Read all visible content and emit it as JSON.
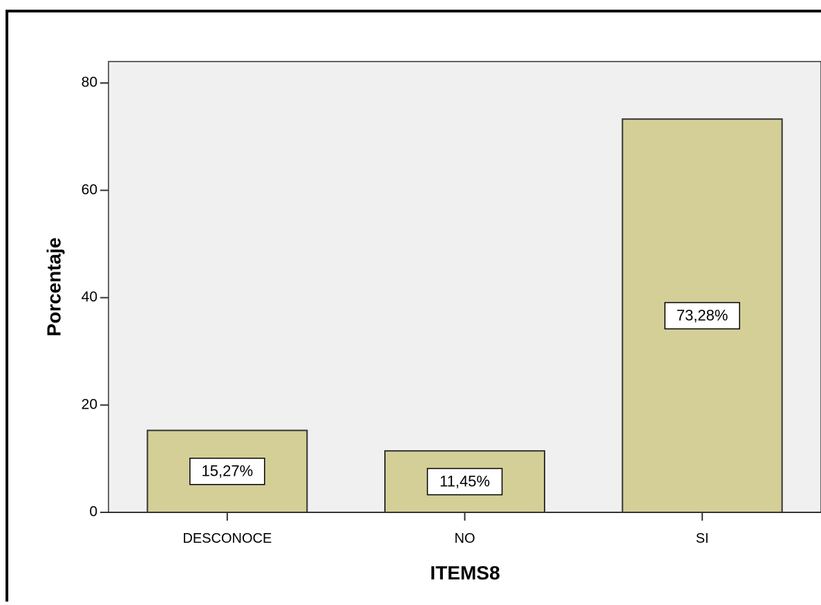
{
  "chart_data": {
    "type": "bar",
    "title": "",
    "xlabel": "ITEMS8",
    "ylabel": "Porcentaje",
    "categories": [
      "DESCONOCE",
      "NO",
      "SI"
    ],
    "values": [
      15.27,
      11.45,
      73.28
    ],
    "data_labels": [
      "15,27%",
      "11,45%",
      "73,28%"
    ],
    "yticks": [
      "0",
      "20",
      "40",
      "60",
      "80"
    ],
    "ylim": [
      0,
      84
    ],
    "grid": false,
    "legend": "none",
    "colors": {
      "bar_fill": "#d4cf97",
      "bar_stroke": "#333333",
      "plot_background": "#f0f0f0",
      "frame": "#000000"
    }
  }
}
